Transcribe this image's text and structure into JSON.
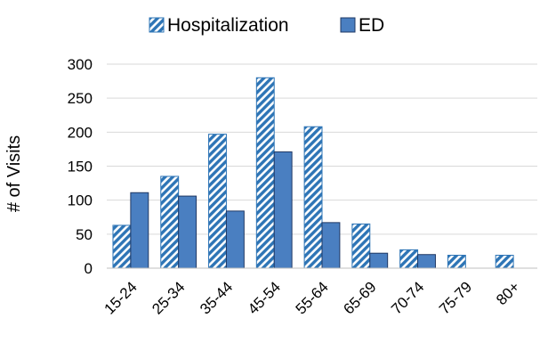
{
  "chart_data": {
    "type": "bar",
    "categories": [
      "15-24",
      "25-34",
      "35-44",
      "45-54",
      "55-64",
      "65-69",
      "70-74",
      "75-79",
      "80+"
    ],
    "series": [
      {
        "name": "Hospitalization",
        "values": [
          63,
          135,
          197,
          280,
          208,
          65,
          27,
          19,
          19
        ],
        "color": "#2E75B6",
        "pattern": "diagonal-hatch"
      },
      {
        "name": "ED",
        "values": [
          111,
          106,
          84,
          171,
          67,
          22,
          20,
          0,
          0
        ],
        "color": "#4A7FC1",
        "pattern": "solid"
      }
    ],
    "xlabel": "",
    "ylabel": "# of Visits",
    "ylim": [
      0,
      300
    ],
    "yticks": [
      0,
      50,
      100,
      150,
      200,
      250,
      300
    ],
    "grid": true,
    "legend_position": "top"
  }
}
